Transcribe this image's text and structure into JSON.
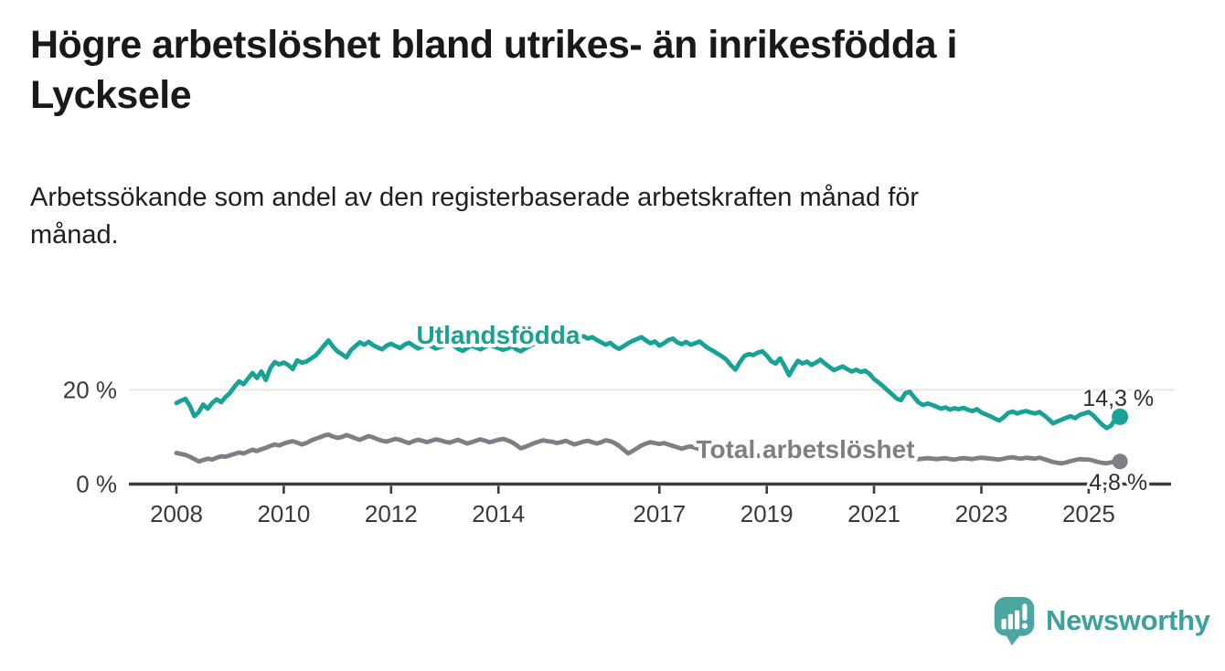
{
  "header": {
    "title_lines": [
      "Högre arbetslöshet bland utrikes- än inrikesfödda i",
      "Lycksele"
    ],
    "subtitle_lines": [
      "Arbetssökande som andel av den registerbaserade arbetskraften månad för",
      "månad."
    ]
  },
  "footer": {
    "brand": "Newsworthy",
    "logo_icon": "bar-chart-speech-bubble"
  },
  "colors": {
    "foreign_born": "#16A295",
    "total": "#7E7E83",
    "axis": "#3B3B3B",
    "gridline": "#E2E2E2",
    "annotation_text": "#2E2E2E",
    "brand_text": "#3AA29C",
    "brand_mark": "#4BA6A1"
  },
  "chart_data": {
    "type": "line",
    "title": "Högre arbetslöshet bland utrikes- än inrikesfödda i Lycksele",
    "subtitle": "Arbetssökande som andel av den registerbaserade arbetskraften månad för månad.",
    "unit": "%",
    "frequency": "monthly",
    "x_start_year": 2008,
    "x_start_month": 1,
    "xlim": [
      2007.6,
      2026.2
    ],
    "ylim": [
      0,
      39
    ],
    "grid": "single horizontal gridline at 20 %",
    "legend_position": "inline labels on lines",
    "y_ticks": [
      {
        "value": 0,
        "label": "0 %"
      },
      {
        "value": 20,
        "label": "20 %"
      }
    ],
    "x_ticks": [
      {
        "year": 2008,
        "label": "2008"
      },
      {
        "year": 2010,
        "label": "2010"
      },
      {
        "year": 2012,
        "label": "2012"
      },
      {
        "year": 2014,
        "label": "2014"
      },
      {
        "year": 2017,
        "label": "2017"
      },
      {
        "year": 2019,
        "label": "2019"
      },
      {
        "year": 2021,
        "label": "2021"
      },
      {
        "year": 2023,
        "label": "2023"
      },
      {
        "year": 2025,
        "label": "2025"
      }
    ],
    "series": [
      {
        "name": "utlandsfodda",
        "label": "Utlandsfödda",
        "color": "#16A295",
        "end_value": 14.3,
        "end_label": "14,3 %",
        "values": [
          17.2,
          17.7,
          18.1,
          16.6,
          14.4,
          15.3,
          16.9,
          16.0,
          17.2,
          18.0,
          17.4,
          18.5,
          19.4,
          20.7,
          21.8,
          21.2,
          22.4,
          23.6,
          22.5,
          23.9,
          22.1,
          24.6,
          25.9,
          25.4,
          25.8,
          25.3,
          24.4,
          26.3,
          25.8,
          26.0,
          26.6,
          27.2,
          28.2,
          29.4,
          30.5,
          29.2,
          28.2,
          27.6,
          26.9,
          28.4,
          29.3,
          30.1,
          29.6,
          30.2,
          29.5,
          29.0,
          28.6,
          29.4,
          29.8,
          29.3,
          28.9,
          29.6,
          30.0,
          29.4,
          28.8,
          29.2,
          29.7,
          29.3,
          28.8,
          29.1,
          29.5,
          29.9,
          29.4,
          28.7,
          28.3,
          28.9,
          29.4,
          29.0,
          28.6,
          29.1,
          29.6,
          29.2,
          28.9,
          28.5,
          28.8,
          29.3,
          28.6,
          28.2,
          28.8,
          29.3,
          29.8,
          30.2,
          29.7,
          30.1,
          30.4,
          29.8,
          30.3,
          30.8,
          30.2,
          30.7,
          31.2,
          31.4,
          30.9,
          31.2,
          30.6,
          30.1,
          29.6,
          30.0,
          29.2,
          28.7,
          29.3,
          29.9,
          30.4,
          30.8,
          31.2,
          30.5,
          29.9,
          30.3,
          29.4,
          29.9,
          30.6,
          30.9,
          30.1,
          29.7,
          30.2,
          29.6,
          29.9,
          30.3,
          29.5,
          28.8,
          28.3,
          27.7,
          27.1,
          26.4,
          25.2,
          24.3,
          25.9,
          27.2,
          27.6,
          27.4,
          27.9,
          28.2,
          27.3,
          26.1,
          25.6,
          26.7,
          25.0,
          23.1,
          24.8,
          26.2,
          25.6,
          26.0,
          25.3,
          25.8,
          26.4,
          25.6,
          24.9,
          24.2,
          24.6,
          25.0,
          24.4,
          23.9,
          24.3,
          23.8,
          24.1,
          23.4,
          22.3,
          21.6,
          20.8,
          19.9,
          19.1,
          18.2,
          17.8,
          19.3,
          19.6,
          18.4,
          17.3,
          16.8,
          17.1,
          16.8,
          16.4,
          16.0,
          16.3,
          15.8,
          16.1,
          15.9,
          16.2,
          15.8,
          15.5,
          15.9,
          15.2,
          14.8,
          14.4,
          13.9,
          13.5,
          14.2,
          15.1,
          15.4,
          15.0,
          15.3,
          15.5,
          15.2,
          15.0,
          15.3,
          14.6,
          13.8,
          12.9,
          13.3,
          13.7,
          14.1,
          14.4,
          14.0,
          14.7,
          15.0,
          15.3,
          14.6,
          13.6,
          12.6,
          11.9,
          12.4,
          13.9,
          14.3
        ]
      },
      {
        "name": "total",
        "label": "Total arbetslöshet",
        "color": "#7E7E83",
        "end_value": 4.8,
        "end_label": "4,8 %",
        "values": [
          6.6,
          6.4,
          6.2,
          5.8,
          5.3,
          4.8,
          5.1,
          5.4,
          5.2,
          5.6,
          5.9,
          5.8,
          6.1,
          6.4,
          6.7,
          6.5,
          6.9,
          7.3,
          7.0,
          7.4,
          7.7,
          8.1,
          8.4,
          8.2,
          8.6,
          8.9,
          9.1,
          8.8,
          8.4,
          8.7,
          9.2,
          9.6,
          9.9,
          10.3,
          10.5,
          10.1,
          9.8,
          10.0,
          10.4,
          10.1,
          9.7,
          9.4,
          9.8,
          10.2,
          9.9,
          9.5,
          9.2,
          9.0,
          9.3,
          9.6,
          9.4,
          9.0,
          8.7,
          9.1,
          9.4,
          9.2,
          8.9,
          9.2,
          9.5,
          9.3,
          9.0,
          8.8,
          9.1,
          9.4,
          9.0,
          8.6,
          8.9,
          9.2,
          9.5,
          9.2,
          8.9,
          9.1,
          9.4,
          9.6,
          9.3,
          8.9,
          8.3,
          7.6,
          7.9,
          8.3,
          8.7,
          9.0,
          9.3,
          9.1,
          9.0,
          8.7,
          8.9,
          9.2,
          8.8,
          8.4,
          8.7,
          9.0,
          9.2,
          8.9,
          8.6,
          8.9,
          9.3,
          9.1,
          8.7,
          8.1,
          7.3,
          6.5,
          7.0,
          7.6,
          8.2,
          8.6,
          8.9,
          8.7,
          8.5,
          8.7,
          8.4,
          8.1,
          7.8,
          7.5,
          7.8,
          8.0,
          7.7,
          7.4,
          7.2,
          7.0,
          6.8,
          6.9,
          6.7,
          6.4,
          6.1,
          5.9,
          6.2,
          6.4,
          6.3,
          6.1,
          6.0,
          6.2,
          6.4,
          6.5,
          6.3,
          6.1,
          5.9,
          5.8,
          6.0,
          6.2,
          6.1,
          6.0,
          5.9,
          6.1,
          6.3,
          6.5,
          6.7,
          6.9,
          6.8,
          6.6,
          6.5,
          6.4,
          6.3,
          6.2,
          6.1,
          6.0,
          5.9,
          5.8,
          5.7,
          5.6,
          5.5,
          5.4,
          5.5,
          5.6,
          5.5,
          5.4,
          5.3,
          5.4,
          5.5,
          5.4,
          5.3,
          5.4,
          5.5,
          5.3,
          5.2,
          5.4,
          5.5,
          5.4,
          5.3,
          5.5,
          5.6,
          5.5,
          5.4,
          5.3,
          5.2,
          5.4,
          5.6,
          5.7,
          5.5,
          5.4,
          5.6,
          5.5,
          5.4,
          5.6,
          5.3,
          5.0,
          4.7,
          4.5,
          4.4,
          4.6,
          4.9,
          5.1,
          5.3,
          5.2,
          5.2,
          5.0,
          4.7,
          4.5,
          4.4,
          4.6,
          4.9,
          4.8
        ]
      }
    ]
  }
}
